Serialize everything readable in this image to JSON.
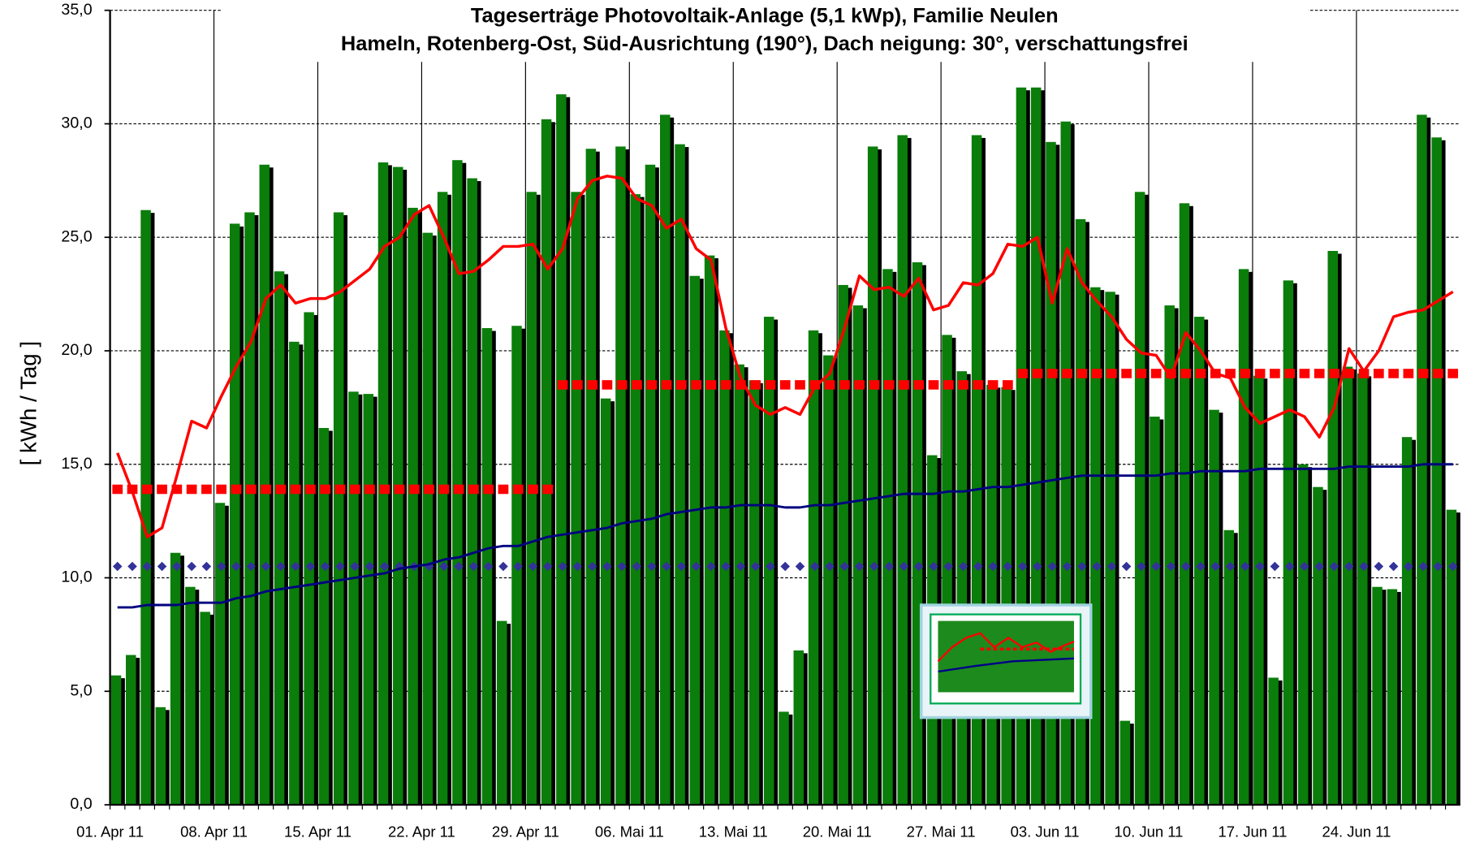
{
  "chart_data": {
    "type": "bar",
    "title": "Tageserträge Photovoltaik-Anlage (5,1 kWp),  Familie Neulen",
    "subtitle": "Hameln, Rotenberg-Ost, Süd-Ausrichtung (190°), Dach neigung: 30°, verschattungsfrei",
    "y_label": "[ kWh / Tag ]",
    "categories": [
      "01. Apr 11",
      null,
      null,
      null,
      null,
      null,
      null,
      "08. Apr 11",
      null,
      null,
      null,
      null,
      null,
      null,
      "15. Apr 11",
      null,
      null,
      null,
      null,
      null,
      null,
      "22. Apr 11",
      null,
      null,
      null,
      null,
      null,
      null,
      "29. Apr 11",
      null,
      null,
      null,
      null,
      null,
      null,
      "06. Mai 11",
      null,
      null,
      null,
      null,
      null,
      null,
      "13. Mai 11",
      null,
      null,
      null,
      null,
      null,
      null,
      "20. Mai 11",
      null,
      null,
      null,
      null,
      null,
      null,
      "27. Mai 11",
      null,
      null,
      null,
      null,
      null,
      null,
      "03. Jun 11",
      null,
      null,
      null,
      null,
      null,
      null,
      "10. Jun 11",
      null,
      null,
      null,
      null,
      null,
      null,
      "17. Jun 11",
      null,
      null,
      null,
      null,
      null,
      null,
      "24. Jun 11",
      null,
      null,
      null,
      null,
      null,
      null
    ],
    "ylim": [
      0,
      35
    ],
    "yticks": [
      {
        "value": 0,
        "label": "0,0"
      },
      {
        "value": 5,
        "label": "5,0"
      },
      {
        "value": 10,
        "label": "10,0"
      },
      {
        "value": 15,
        "label": "15,0"
      },
      {
        "value": 20,
        "label": "20,0"
      },
      {
        "value": 25,
        "label": "25,0"
      },
      {
        "value": 30,
        "label": "30,0"
      },
      {
        "value": 35,
        "label": "35,0"
      }
    ],
    "grid": true,
    "series": [
      {
        "type": "bar",
        "color": "#0a7d0a",
        "values": [
          5.7,
          6.6,
          26.2,
          4.3,
          11.1,
          9.6,
          8.5,
          13.3,
          25.6,
          26.1,
          28.2,
          23.5,
          20.4,
          21.7,
          16.6,
          26.1,
          18.2,
          18.1,
          28.3,
          28.1,
          26.3,
          25.2,
          27.0,
          28.4,
          27.6,
          21.0,
          8.1,
          21.1,
          27.0,
          30.2,
          31.3,
          27.0,
          28.9,
          17.9,
          29.0,
          26.9,
          28.2,
          30.4,
          29.1,
          23.3,
          24.2,
          20.9,
          19.4,
          18.7,
          21.5,
          4.1,
          6.8,
          20.9,
          19.8,
          22.9,
          22.0,
          29.0,
          23.6,
          29.5,
          23.9,
          15.4,
          20.7,
          19.1,
          29.5,
          18.5,
          18.4,
          31.6,
          31.6,
          29.2,
          30.1,
          25.8,
          22.8,
          22.6,
          3.7,
          27.0,
          17.1,
          22.0,
          26.5,
          21.5,
          17.4,
          12.1,
          23.6,
          18.9,
          5.6,
          23.1,
          15.0,
          14.0,
          24.4,
          19.3,
          19.0,
          9.6,
          9.5,
          16.2,
          30.4,
          29.4,
          13.0
        ]
      },
      {
        "type": "marker",
        "color": "#333399",
        "values": [
          10.5,
          10.5,
          10.5,
          10.5,
          10.5,
          10.5,
          10.5,
          10.5,
          10.5,
          10.5,
          10.5,
          10.5,
          10.5,
          10.5,
          10.5,
          10.5,
          10.5,
          10.5,
          10.5,
          10.5,
          10.5,
          10.5,
          10.5,
          10.5,
          10.5,
          10.5,
          10.5,
          10.5,
          10.5,
          10.5,
          10.5,
          10.5,
          10.5,
          10.5,
          10.5,
          10.5,
          10.5,
          10.5,
          10.5,
          10.5,
          10.5,
          10.5,
          10.5,
          10.5,
          10.5,
          10.5,
          10.5,
          10.5,
          10.5,
          10.5,
          10.5,
          10.5,
          10.5,
          10.5,
          10.5,
          10.5,
          10.5,
          10.5,
          10.5,
          10.5,
          10.5,
          10.5,
          10.5,
          10.5,
          10.5,
          10.5,
          10.5,
          10.5,
          10.5,
          10.5,
          10.5,
          10.5,
          10.5,
          10.5,
          10.5,
          10.5,
          10.5,
          10.5,
          10.5,
          10.5,
          10.5,
          10.5,
          10.5,
          10.5,
          10.5,
          10.5,
          10.5,
          10.5,
          10.5,
          10.5,
          10.5
        ]
      },
      {
        "type": "line",
        "color": "#000080",
        "width": 2.5,
        "values": [
          8.7,
          8.7,
          8.8,
          8.8,
          8.8,
          8.9,
          8.9,
          8.9,
          9.1,
          9.2,
          9.4,
          9.5,
          9.6,
          9.7,
          9.8,
          9.9,
          10.0,
          10.1,
          10.2,
          10.4,
          10.5,
          10.6,
          10.8,
          10.9,
          11.1,
          11.3,
          11.4,
          11.4,
          11.6,
          11.8,
          11.9,
          12.0,
          12.1,
          12.2,
          12.4,
          12.5,
          12.6,
          12.8,
          12.9,
          13.0,
          13.1,
          13.1,
          13.2,
          13.2,
          13.2,
          13.1,
          13.1,
          13.2,
          13.2,
          13.3,
          13.4,
          13.5,
          13.6,
          13.7,
          13.7,
          13.7,
          13.8,
          13.8,
          13.9,
          14.0,
          14.0,
          14.1,
          14.2,
          14.3,
          14.4,
          14.5,
          14.5,
          14.5,
          14.5,
          14.5,
          14.5,
          14.6,
          14.6,
          14.7,
          14.7,
          14.7,
          14.7,
          14.8,
          14.8,
          14.8,
          14.8,
          14.8,
          14.8,
          14.9,
          14.9,
          14.9,
          14.9,
          14.9,
          15.0,
          15.0,
          15.0
        ]
      },
      {
        "type": "dash",
        "color": "#ff0000",
        "values": [
          13.9,
          13.9,
          13.9,
          13.9,
          13.9,
          13.9,
          13.9,
          13.9,
          13.9,
          13.9,
          13.9,
          13.9,
          13.9,
          13.9,
          13.9,
          13.9,
          13.9,
          13.9,
          13.9,
          13.9,
          13.9,
          13.9,
          13.9,
          13.9,
          13.9,
          13.9,
          13.9,
          13.9,
          13.9,
          13.9,
          18.5,
          18.5,
          18.5,
          18.5,
          18.5,
          18.5,
          18.5,
          18.5,
          18.5,
          18.5,
          18.5,
          18.5,
          18.5,
          18.5,
          18.5,
          18.5,
          18.5,
          18.5,
          18.5,
          18.5,
          18.5,
          18.5,
          18.5,
          18.5,
          18.5,
          18.5,
          18.5,
          18.5,
          18.5,
          18.5,
          18.5,
          19.0,
          19.0,
          19.0,
          19.0,
          19.0,
          19.0,
          19.0,
          19.0,
          19.0,
          19.0,
          19.0,
          19.0,
          19.0,
          19.0,
          19.0,
          19.0,
          19.0,
          19.0,
          19.0,
          19.0,
          19.0,
          19.0,
          19.0,
          19.0,
          19.0,
          19.0,
          19.0,
          19.0,
          19.0,
          19.0
        ]
      },
      {
        "type": "line",
        "color": "#ff0000",
        "width": 3,
        "values": [
          15.5,
          13.8,
          11.8,
          12.2,
          14.5,
          16.9,
          16.6,
          18.0,
          19.3,
          20.4,
          22.3,
          22.9,
          22.1,
          22.3,
          22.3,
          22.6,
          23.1,
          23.6,
          24.6,
          25.0,
          26.0,
          26.4,
          25.0,
          23.4,
          23.5,
          24.0,
          24.6,
          24.6,
          24.7,
          23.6,
          24.5,
          26.7,
          27.5,
          27.7,
          27.6,
          26.7,
          26.4,
          25.4,
          25.8,
          24.5,
          24.0,
          21.0,
          18.8,
          17.6,
          17.2,
          17.5,
          17.2,
          18.4,
          19.0,
          21.0,
          23.3,
          22.7,
          22.8,
          22.4,
          23.2,
          21.8,
          22.0,
          23.0,
          22.9,
          23.4,
          24.7,
          24.6,
          25.0,
          22.1,
          24.5,
          23.0,
          22.2,
          21.5,
          20.5,
          19.9,
          19.8,
          18.8,
          20.8,
          20.0,
          19.0,
          18.8,
          17.5,
          16.8,
          17.1,
          17.4,
          17.1,
          16.2,
          17.5,
          20.1,
          19.1,
          20.0,
          21.5,
          21.7,
          21.8,
          22.2,
          22.6
        ]
      }
    ]
  }
}
